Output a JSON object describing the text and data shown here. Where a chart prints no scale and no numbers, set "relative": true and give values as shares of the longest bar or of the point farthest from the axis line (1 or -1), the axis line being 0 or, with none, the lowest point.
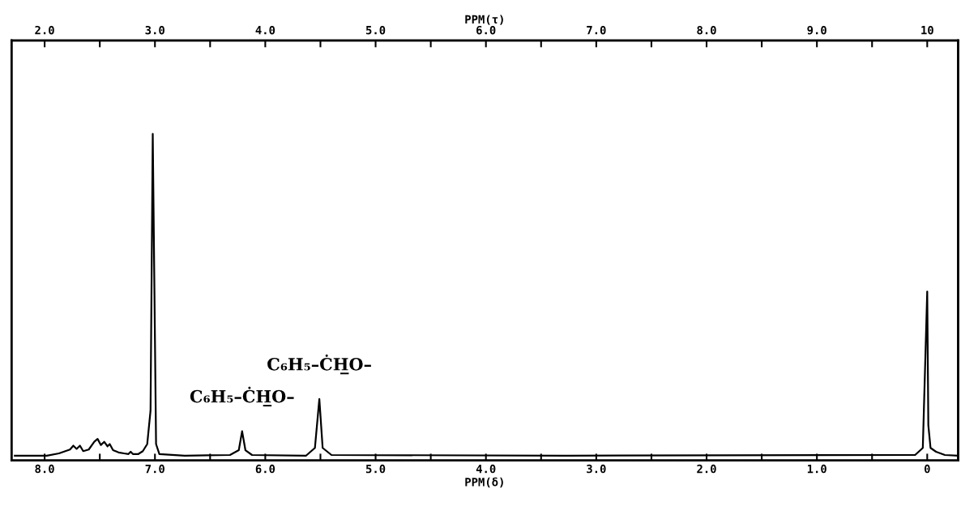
{
  "chart_data": {
    "type": "line",
    "relative": true,
    "xlabel": "PPM(δ)",
    "x2label": "PPM(τ)",
    "xlim": [
      8.3,
      -0.28
    ],
    "xticks": [
      {
        "value": 8.0,
        "label": "8.0"
      },
      {
        "value": 7.5,
        "label": null
      },
      {
        "value": 7.0,
        "label": "7.0"
      },
      {
        "value": 6.5,
        "label": null
      },
      {
        "value": 6.0,
        "label": "6.0"
      },
      {
        "value": 5.5,
        "label": null
      },
      {
        "value": 5.0,
        "label": "5.0"
      },
      {
        "value": 4.5,
        "label": null
      },
      {
        "value": 4.0,
        "label": "4.0"
      },
      {
        "value": 3.5,
        "label": null
      },
      {
        "value": 3.0,
        "label": "3.0"
      },
      {
        "value": 2.5,
        "label": null
      },
      {
        "value": 2.0,
        "label": "2.0"
      },
      {
        "value": 1.5,
        "label": null
      },
      {
        "value": 1.0,
        "label": "1.0"
      },
      {
        "value": 0.5,
        "label": null
      },
      {
        "value": 0,
        "label": "0"
      }
    ],
    "x2lim": [
      1.7,
      10.28
    ],
    "x2ticks": [
      {
        "value": 2.0,
        "label": "2.0"
      },
      {
        "value": 2.5,
        "label": null
      },
      {
        "value": 3.0,
        "label": "3.0"
      },
      {
        "value": 3.5,
        "label": null
      },
      {
        "value": 4.0,
        "label": "4.0"
      },
      {
        "value": 4.5,
        "label": null
      },
      {
        "value": 5.0,
        "label": "5.0"
      },
      {
        "value": 5.5,
        "label": null
      },
      {
        "value": 6.0,
        "label": "6.0"
      },
      {
        "value": 6.5,
        "label": null
      },
      {
        "value": 7.0,
        "label": "7.0"
      },
      {
        "value": 7.5,
        "label": null
      },
      {
        "value": 8.0,
        "label": "8.0"
      },
      {
        "value": 8.5,
        "label": null
      },
      {
        "value": 9.0,
        "label": "9.0"
      },
      {
        "value": 9.5,
        "label": null
      },
      {
        "value": 10,
        "label": "10"
      }
    ],
    "tick_labels": "x",
    "grid": false,
    "marker": "none",
    "line_style": "solid",
    "series": [
      {
        "color": "#000000",
        "x": [
          8.27,
          7.98,
          7.87,
          7.77,
          7.74,
          7.71,
          7.68,
          7.65,
          7.6,
          7.55,
          7.52,
          7.49,
          7.46,
          7.43,
          7.41,
          7.38,
          7.33,
          7.28,
          7.24,
          7.22,
          7.2,
          7.15,
          7.11,
          7.07,
          7.04,
          7.02,
          7.0,
          6.99,
          6.96,
          6.73,
          6.32,
          6.24,
          6.21,
          6.18,
          6.12,
          5.63,
          5.55,
          5.51,
          5.48,
          5.4,
          3.27,
          0.11,
          0.04,
          0.0,
          -0.01,
          -0.03,
          -0.08,
          -0.16,
          -0.28
        ],
        "values": [
          0,
          0,
          0.007,
          0.019,
          0.031,
          0.021,
          0.031,
          0.014,
          0.019,
          0.043,
          0.052,
          0.033,
          0.043,
          0.029,
          0.036,
          0.017,
          0.01,
          0.007,
          0.005,
          0.012,
          0.005,
          0.005,
          0.014,
          0.036,
          0.14,
          1.0,
          0.36,
          0.036,
          0.005,
          0,
          0.002,
          0.017,
          0.076,
          0.017,
          0.002,
          0,
          0.024,
          0.176,
          0.024,
          0.002,
          0,
          0.002,
          0.024,
          0.51,
          0.095,
          0.024,
          0.012,
          0.002,
          0
        ]
      }
    ],
    "annotations": [
      {
        "text": "C₆H₅–ĊH̲O–",
        "x": 6.21,
        "y": 0.076
      },
      {
        "text": "C₆H₅–ĊH̲O–",
        "x": 5.51,
        "y": 0.176
      }
    ]
  }
}
